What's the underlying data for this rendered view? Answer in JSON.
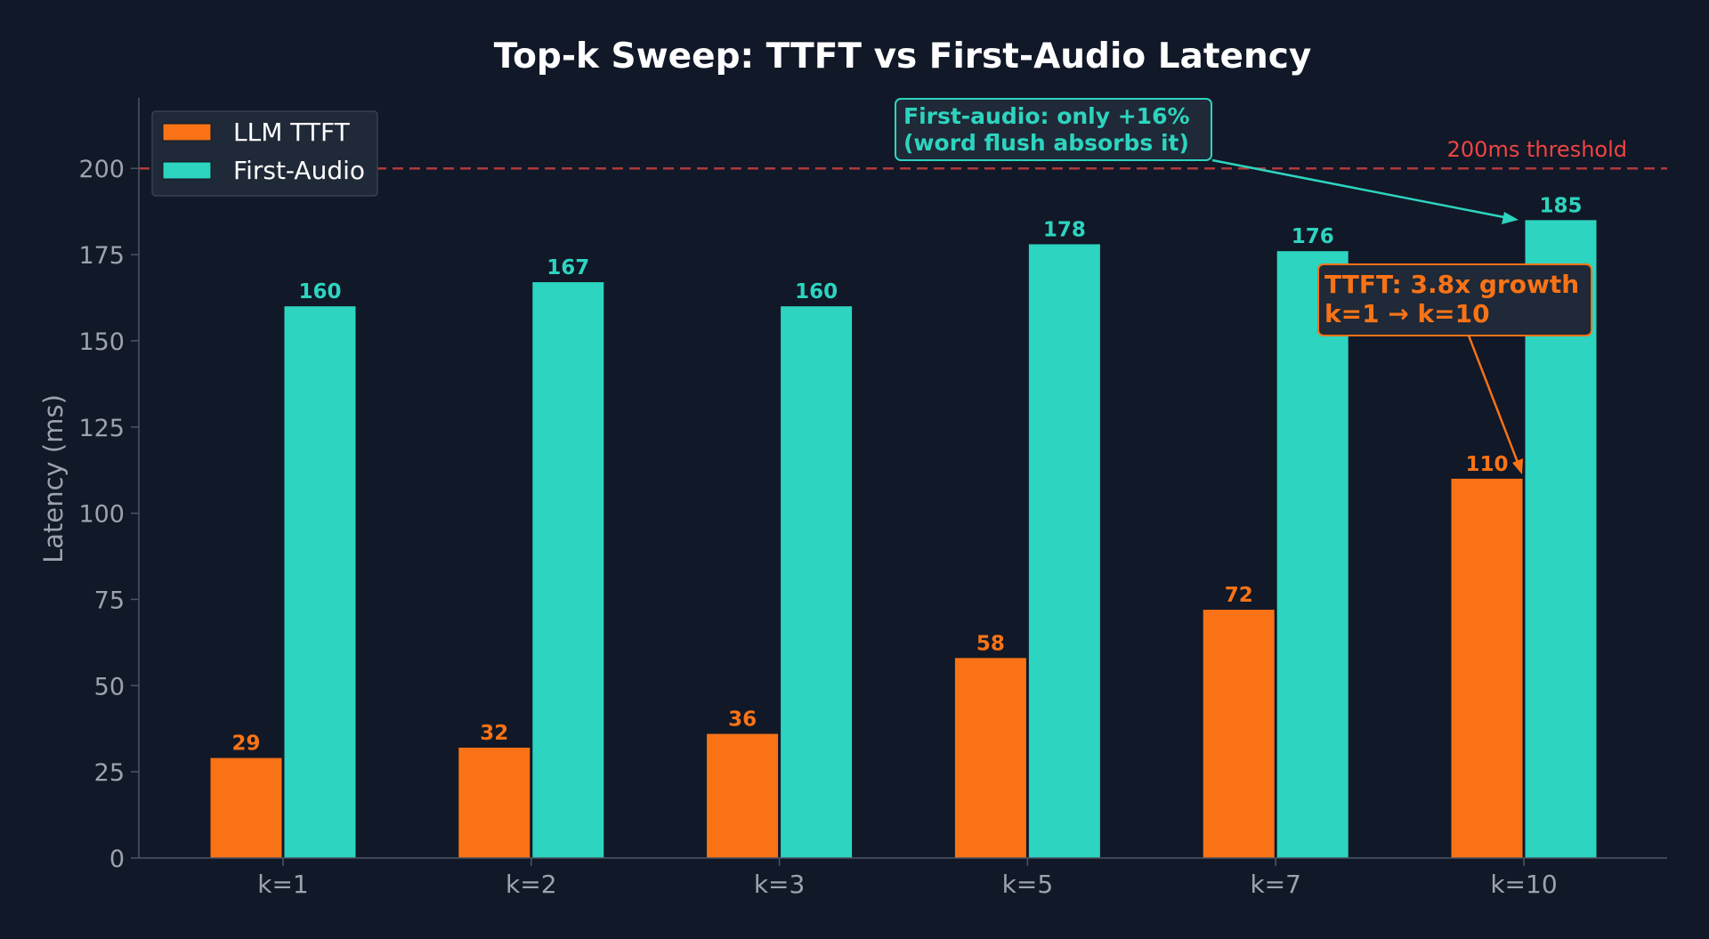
{
  "chart_data": {
    "type": "bar",
    "title": "Top-k Sweep: TTFT vs First-Audio Latency",
    "xlabel": "",
    "ylabel": "Latency (ms)",
    "categories": [
      "k=1",
      "k=2",
      "k=3",
      "k=5",
      "k=7",
      "k=10"
    ],
    "series": [
      {
        "name": "LLM TTFT",
        "color": "#f97316",
        "values": [
          29,
          32,
          36,
          58,
          72,
          110
        ]
      },
      {
        "name": "First-Audio",
        "color": "#2dd4bf",
        "values": [
          160,
          167,
          160,
          178,
          176,
          185
        ]
      }
    ],
    "data_labels": [
      [
        "29",
        "32",
        "36",
        "58",
        "72",
        "110"
      ],
      [
        "160",
        "167",
        "160",
        "178",
        "176",
        "185"
      ]
    ],
    "ylim": [
      0,
      220
    ],
    "yticks": [
      0,
      25,
      50,
      75,
      100,
      125,
      150,
      175,
      200
    ],
    "grid": false,
    "legend_position": "top-left",
    "reference_line": {
      "value": 200,
      "label": "200ms threshold",
      "color": "#ef4444",
      "style": "dashed"
    },
    "annotations": [
      {
        "lines": [
          "First-audio: only +16%",
          "(word flush absorbs it)"
        ],
        "color": "#2dd4bf",
        "target": {
          "series": 1,
          "category": 5
        }
      },
      {
        "lines": [
          "TTFT: 3.8x growth",
          "k=1 → k=10"
        ],
        "color": "#f97316",
        "target": {
          "series": 0,
          "category": 5
        }
      }
    ]
  },
  "colors": {
    "background": "#111827",
    "axis": "#4b5563",
    "tick_text": "#9ca3af",
    "title_text": "#ffffff",
    "box_fill": "#1f2937"
  }
}
